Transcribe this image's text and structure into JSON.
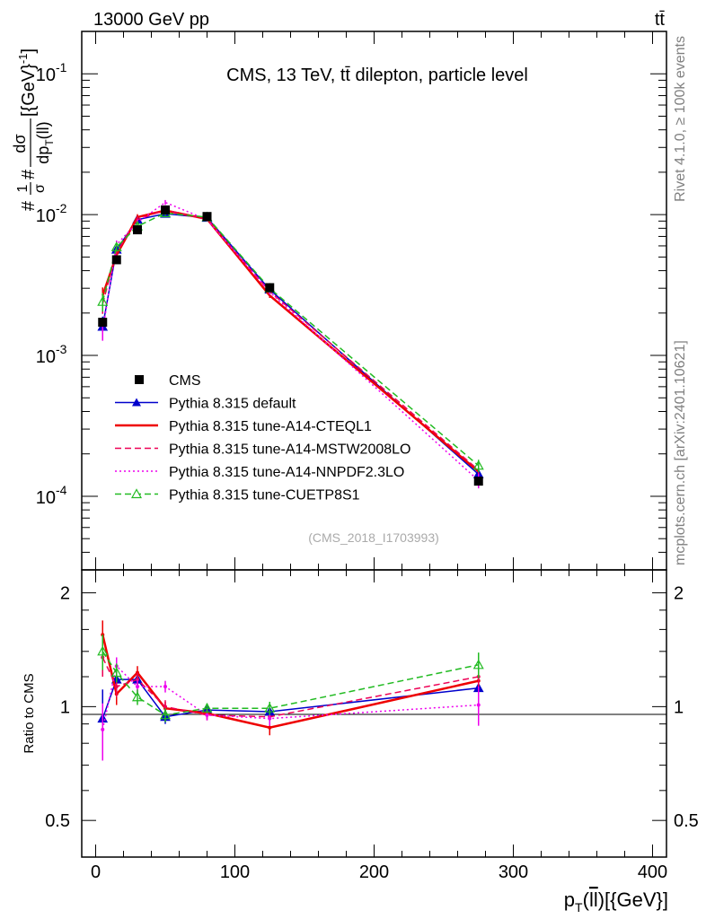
{
  "header": {
    "left": "13000 GeV pp",
    "right": "tt̄",
    "title": "CMS, 13 TeV, tt̄ dilepton, particle level",
    "analysis": "(CMS_2018_I1703993)",
    "rivet": "Rivet 4.1.0, ≥ 100k events",
    "mcplots": "mcplots.cern.ch [arXiv:2401.10621]"
  },
  "chart_data": {
    "type": "line",
    "ylabel_main": "#1/σ# dσ/dp_T(ll)[{GeV}^-1]",
    "ylabel_ratio": "Ratio to CMS",
    "xlabel": "p_T(ll)[{GeV}]",
    "xlim": [
      -10,
      410
    ],
    "ylim_main_log": [
      3e-05,
      0.2
    ],
    "ylim_ratio": [
      0.4,
      2.3
    ],
    "x_ticks": [
      "0",
      "100",
      "200",
      "300",
      "400"
    ],
    "y_ticks_main": [
      "10^-4",
      "10^-3",
      "10^-2",
      "10^-1"
    ],
    "y_ticks_ratio": [
      "0.5",
      "1",
      "2"
    ],
    "x": [
      5,
      15,
      30,
      50,
      80,
      125,
      275
    ],
    "data": {
      "name": "CMS",
      "color": "#000000",
      "values": [
        0.00172,
        0.00478,
        0.0078,
        0.0108,
        0.0097,
        0.00303,
        0.000128
      ],
      "errors": [
        0.00012,
        0.00015,
        0.00022,
        0.00025,
        0.00022,
        8e-05,
        8e-06
      ]
    },
    "series": [
      {
        "name": "Pythia 8.315 default",
        "color": "#0000cc",
        "style": "solid",
        "marker": "triangle-filled",
        "ratio": [
          0.93,
          1.18,
          1.18,
          0.94,
          0.98,
          0.97,
          1.12
        ],
        "ratio_err": [
          0.18,
          0.08,
          0.05,
          0.04,
          0.03,
          0.04,
          0.09
        ]
      },
      {
        "name": "Pythia 8.315 tune-A14-CTEQL1",
        "color": "#ee0000",
        "style": "solid",
        "marker": "none",
        "ratio": [
          1.55,
          1.08,
          1.23,
          0.99,
          0.96,
          0.88,
          1.17
        ],
        "ratio_err": [
          0.14,
          0.07,
          0.05,
          0.04,
          0.03,
          0.04,
          0.08
        ]
      },
      {
        "name": "Pythia 8.315 tune-A14-MSTW2008LO",
        "color": "#ee0055",
        "style": "dashed",
        "marker": "none",
        "ratio": [
          1.35,
          1.13,
          1.18,
          1.0,
          0.95,
          0.94,
          1.2
        ],
        "ratio_err": [
          0.15,
          0.07,
          0.05,
          0.04,
          0.03,
          0.04,
          0.1
        ]
      },
      {
        "name": "Pythia 8.315 tune-A14-NNPDF2.3LO",
        "color": "#ee00ee",
        "style": "dotted",
        "marker": "none",
        "ratio": [
          0.87,
          1.28,
          1.13,
          1.13,
          0.95,
          0.93,
          1.01
        ],
        "ratio_err": [
          0.15,
          0.07,
          0.05,
          0.04,
          0.03,
          0.04,
          0.12
        ]
      },
      {
        "name": "Pythia 8.315 tune-CUETP8S1",
        "color": "#22bb22",
        "style": "dashed",
        "marker": "triangle-open",
        "ratio": [
          1.4,
          1.23,
          1.06,
          0.95,
          0.99,
          0.99,
          1.29
        ],
        "ratio_err": [
          0.15,
          0.07,
          0.05,
          0.04,
          0.03,
          0.04,
          0.1
        ]
      }
    ]
  }
}
